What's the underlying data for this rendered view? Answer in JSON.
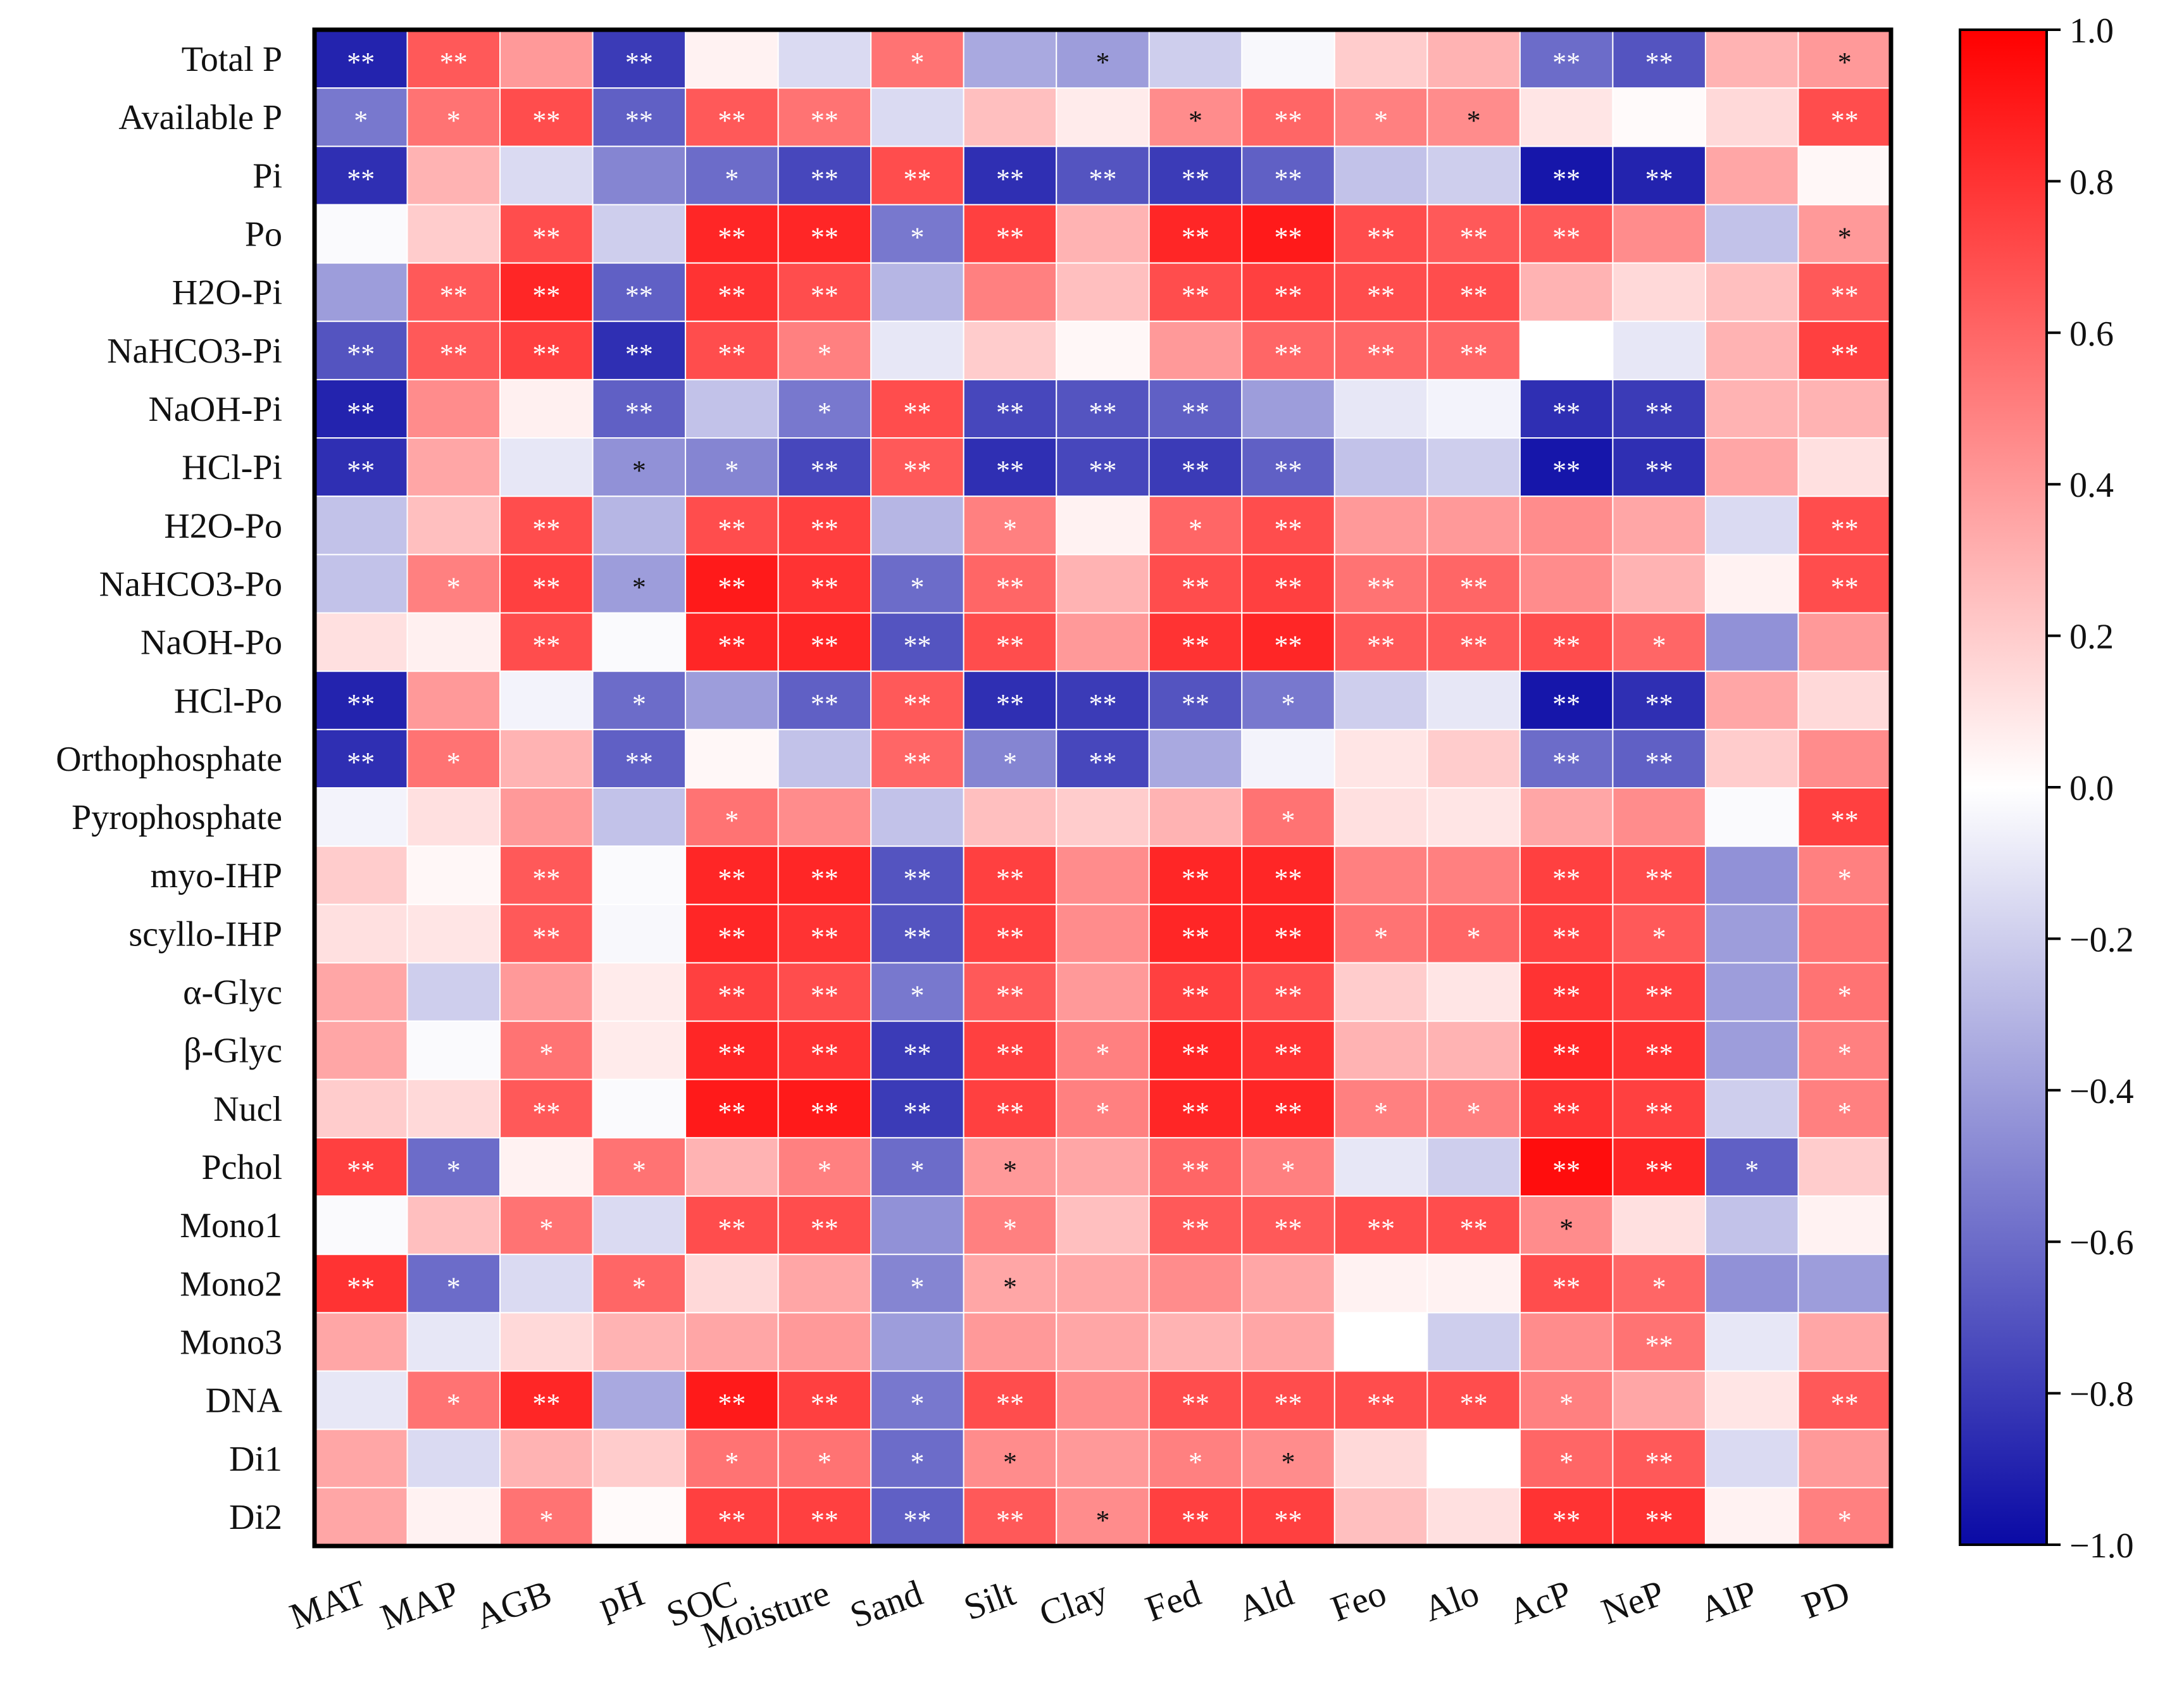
{
  "chart_data": {
    "type": "heatmap",
    "title": "",
    "xlabel": "",
    "ylabel": "",
    "rows": [
      "Total P",
      "Available P",
      "Pi",
      "Po",
      "H2O-Pi",
      "NaHCO3-Pi",
      "NaOH-Pi",
      "HCl-Pi",
      "H2O-Po",
      "NaHCO3-Po",
      "NaOH-Po",
      "HCl-Po",
      "Orthophosphate",
      "Pyrophosphate",
      "myo-IHP",
      "scyllo-IHP",
      "α-Glyc",
      "β-Glyc",
      "Nucl",
      "Pchol",
      "Mono1",
      "Mono2",
      "Mono3",
      "DNA",
      "Di1",
      "Di2"
    ],
    "columns": [
      "MAT",
      "MAP",
      "AGB",
      "pH",
      "SOC",
      "Moisture",
      "Sand",
      "Silt",
      "Clay",
      "Fed",
      "Ald",
      "Feo",
      "Alo",
      "AcP",
      "NeP",
      "AlP",
      "PD"
    ],
    "values": [
      [
        -0.9,
        0.65,
        0.4,
        -0.8,
        0.05,
        -0.15,
        0.55,
        -0.35,
        -0.4,
        -0.2,
        -0.03,
        0.2,
        0.3,
        -0.6,
        -0.7,
        0.3,
        0.4
      ],
      [
        -0.55,
        0.55,
        0.7,
        -0.65,
        0.65,
        0.55,
        -0.15,
        0.25,
        0.08,
        0.45,
        0.6,
        0.5,
        0.45,
        0.1,
        0.02,
        0.15,
        0.7
      ],
      [
        -0.85,
        0.3,
        -0.15,
        -0.5,
        -0.6,
        -0.75,
        0.7,
        -0.85,
        -0.7,
        -0.8,
        -0.65,
        -0.25,
        -0.2,
        -0.95,
        -0.9,
        0.35,
        0.03
      ],
      [
        -0.02,
        0.2,
        0.7,
        -0.2,
        0.85,
        0.85,
        -0.55,
        0.75,
        0.3,
        0.85,
        0.9,
        0.7,
        0.65,
        0.65,
        0.45,
        -0.25,
        0.4
      ],
      [
        -0.4,
        0.65,
        0.85,
        -0.65,
        0.8,
        0.7,
        -0.3,
        0.5,
        0.25,
        0.7,
        0.75,
        0.7,
        0.7,
        0.3,
        0.15,
        0.25,
        0.65
      ],
      [
        -0.7,
        0.65,
        0.75,
        -0.85,
        0.7,
        0.5,
        -0.1,
        0.2,
        0.03,
        0.4,
        0.6,
        0.6,
        0.6,
        0.0,
        -0.1,
        0.3,
        0.75
      ],
      [
        -0.9,
        0.45,
        0.06,
        -0.65,
        -0.25,
        -0.55,
        0.7,
        -0.75,
        -0.7,
        -0.65,
        -0.4,
        -0.1,
        -0.05,
        -0.85,
        -0.8,
        0.3,
        0.3
      ],
      [
        -0.85,
        0.35,
        -0.1,
        -0.45,
        -0.5,
        -0.75,
        0.65,
        -0.85,
        -0.75,
        -0.8,
        -0.65,
        -0.25,
        -0.2,
        -0.95,
        -0.85,
        0.35,
        0.12
      ],
      [
        -0.25,
        0.25,
        0.7,
        -0.3,
        0.7,
        0.75,
        -0.3,
        0.5,
        0.05,
        0.6,
        0.7,
        0.4,
        0.4,
        0.45,
        0.35,
        -0.15,
        0.7
      ],
      [
        -0.25,
        0.5,
        0.75,
        -0.4,
        0.9,
        0.8,
        -0.6,
        0.6,
        0.3,
        0.7,
        0.75,
        0.55,
        0.6,
        0.45,
        0.3,
        0.05,
        0.7
      ],
      [
        0.12,
        0.06,
        0.7,
        -0.02,
        0.85,
        0.85,
        -0.7,
        0.7,
        0.4,
        0.8,
        0.85,
        0.65,
        0.65,
        0.7,
        0.6,
        -0.45,
        0.4
      ],
      [
        -0.9,
        0.4,
        -0.05,
        -0.6,
        -0.4,
        -0.65,
        0.65,
        -0.85,
        -0.8,
        -0.7,
        -0.55,
        -0.2,
        -0.1,
        -0.95,
        -0.85,
        0.35,
        0.15
      ],
      [
        -0.85,
        0.55,
        0.3,
        -0.65,
        0.03,
        -0.25,
        0.6,
        -0.5,
        -0.75,
        -0.35,
        -0.05,
        0.1,
        0.2,
        -0.6,
        -0.65,
        0.2,
        0.45
      ],
      [
        -0.05,
        0.12,
        0.4,
        -0.25,
        0.55,
        0.45,
        -0.25,
        0.25,
        0.2,
        0.3,
        0.55,
        0.12,
        0.1,
        0.35,
        0.45,
        -0.02,
        0.75
      ],
      [
        0.2,
        0.03,
        0.65,
        -0.02,
        0.85,
        0.85,
        -0.7,
        0.75,
        0.45,
        0.85,
        0.85,
        0.5,
        0.5,
        0.75,
        0.7,
        -0.45,
        0.5
      ],
      [
        0.12,
        0.1,
        0.65,
        -0.03,
        0.85,
        0.8,
        -0.7,
        0.75,
        0.45,
        0.85,
        0.85,
        0.55,
        0.6,
        0.75,
        0.65,
        -0.4,
        0.55
      ],
      [
        0.35,
        -0.2,
        0.4,
        0.08,
        0.75,
        0.7,
        -0.55,
        0.65,
        0.4,
        0.75,
        0.7,
        0.2,
        0.1,
        0.8,
        0.75,
        -0.4,
        0.55
      ],
      [
        0.35,
        -0.02,
        0.55,
        0.08,
        0.85,
        0.8,
        -0.8,
        0.75,
        0.5,
        0.85,
        0.8,
        0.3,
        0.3,
        0.85,
        0.8,
        -0.4,
        0.5
      ],
      [
        0.2,
        0.15,
        0.65,
        -0.02,
        0.9,
        0.9,
        -0.8,
        0.75,
        0.5,
        0.85,
        0.85,
        0.5,
        0.5,
        0.8,
        0.75,
        -0.2,
        0.5
      ],
      [
        0.75,
        -0.6,
        0.05,
        0.55,
        0.3,
        0.5,
        -0.6,
        0.4,
        0.35,
        0.6,
        0.5,
        -0.1,
        -0.2,
        0.95,
        0.85,
        -0.65,
        0.2
      ],
      [
        -0.02,
        0.25,
        0.55,
        -0.15,
        0.7,
        0.7,
        -0.45,
        0.5,
        0.25,
        0.65,
        0.65,
        0.7,
        0.7,
        0.45,
        0.12,
        -0.25,
        0.05
      ],
      [
        0.8,
        -0.6,
        -0.15,
        0.6,
        0.15,
        0.35,
        -0.5,
        0.35,
        0.35,
        0.45,
        0.35,
        0.05,
        0.05,
        0.7,
        0.6,
        -0.45,
        -0.4
      ],
      [
        0.35,
        -0.1,
        0.15,
        0.3,
        0.35,
        0.4,
        -0.4,
        0.4,
        0.35,
        0.3,
        0.35,
        0.0,
        -0.2,
        0.45,
        0.55,
        -0.1,
        0.35
      ],
      [
        -0.1,
        0.55,
        0.85,
        -0.35,
        0.9,
        0.75,
        -0.55,
        0.7,
        0.45,
        0.7,
        0.7,
        0.7,
        0.7,
        0.5,
        0.35,
        0.1,
        0.65
      ],
      [
        0.35,
        -0.15,
        0.3,
        0.2,
        0.55,
        0.55,
        -0.6,
        0.45,
        0.4,
        0.5,
        0.45,
        0.15,
        0.0,
        0.6,
        0.65,
        -0.15,
        0.4
      ],
      [
        0.35,
        0.05,
        0.55,
        0.02,
        0.75,
        0.75,
        -0.65,
        0.65,
        0.45,
        0.75,
        0.75,
        0.25,
        0.12,
        0.8,
        0.8,
        0.05,
        0.5
      ]
    ],
    "significance": [
      [
        "**",
        "**",
        "",
        "**",
        "",
        "",
        "*",
        "",
        "*",
        "",
        "",
        "",
        "",
        "**",
        "**",
        "",
        "*"
      ],
      [
        "*",
        "*",
        "**",
        "**",
        "**",
        "**",
        "",
        "",
        "",
        "*",
        "**",
        "*",
        "*",
        "",
        "",
        "",
        "**"
      ],
      [
        "**",
        "",
        "",
        "",
        "*",
        "**",
        "**",
        "**",
        "**",
        "**",
        "**",
        "",
        "",
        "**",
        "**",
        "",
        ""
      ],
      [
        "",
        "",
        "**",
        "",
        "**",
        "**",
        "*",
        "**",
        "",
        "**",
        "**",
        "**",
        "**",
        "**",
        "",
        "",
        "*"
      ],
      [
        "",
        "**",
        "**",
        "**",
        "**",
        "**",
        "",
        "",
        "",
        "**",
        "**",
        "**",
        "**",
        "",
        "",
        "",
        "**"
      ],
      [
        "**",
        "**",
        "**",
        "**",
        "**",
        "*",
        "",
        "",
        "",
        "",
        "**",
        "**",
        "**",
        "",
        "",
        "",
        "**"
      ],
      [
        "**",
        "",
        "",
        "**",
        "",
        "*",
        "**",
        "**",
        "**",
        "**",
        "",
        "",
        "",
        "**",
        "**",
        "",
        ""
      ],
      [
        "**",
        "",
        "",
        "*",
        "*",
        "**",
        "**",
        "**",
        "**",
        "**",
        "**",
        "",
        "",
        "**",
        "**",
        "",
        ""
      ],
      [
        "",
        "",
        "**",
        "",
        "**",
        "**",
        "",
        "*",
        "",
        "*",
        "**",
        "",
        "",
        "",
        "",
        "",
        "**"
      ],
      [
        "",
        "*",
        "**",
        "*",
        "**",
        "**",
        "*",
        "**",
        "",
        "**",
        "**",
        "**",
        "**",
        "",
        "",
        "",
        "**"
      ],
      [
        "",
        "",
        "**",
        "",
        "**",
        "**",
        "**",
        "**",
        "",
        "**",
        "**",
        "**",
        "**",
        "**",
        "*",
        "",
        ""
      ],
      [
        "**",
        "",
        "",
        "*",
        "",
        "**",
        "**",
        "**",
        "**",
        "**",
        "*",
        "",
        "",
        "**",
        "**",
        "",
        ""
      ],
      [
        "**",
        "*",
        "",
        "**",
        "",
        "",
        "**",
        "*",
        "**",
        "",
        "",
        "",
        "",
        "**",
        "**",
        "",
        ""
      ],
      [
        "",
        "",
        "",
        "",
        "*",
        "",
        "",
        "",
        "",
        "",
        "*",
        "",
        "",
        "",
        "",
        "",
        "**"
      ],
      [
        "",
        "",
        "**",
        "",
        "**",
        "**",
        "**",
        "**",
        "",
        "**",
        "**",
        "",
        "",
        "**",
        "**",
        "",
        "*"
      ],
      [
        "",
        "",
        "**",
        "",
        "**",
        "**",
        "**",
        "**",
        "",
        "**",
        "**",
        "*",
        "*",
        "**",
        "*",
        "",
        ""
      ],
      [
        "",
        "",
        "",
        "",
        "**",
        "**",
        "*",
        "**",
        "",
        "**",
        "**",
        "",
        "",
        "**",
        "**",
        "",
        "*"
      ],
      [
        "",
        "",
        "*",
        "",
        "**",
        "**",
        "**",
        "**",
        "*",
        "**",
        "**",
        "",
        "",
        "**",
        "**",
        "",
        "*"
      ],
      [
        "",
        "",
        "**",
        "",
        "**",
        "**",
        "**",
        "**",
        "*",
        "**",
        "**",
        "*",
        "*",
        "**",
        "**",
        "",
        "*"
      ],
      [
        "**",
        "*",
        "",
        "*",
        "",
        "*",
        "*",
        "*",
        "",
        "**",
        "*",
        "",
        "",
        "**",
        "**",
        "*",
        ""
      ],
      [
        "",
        "",
        "*",
        "",
        "**",
        "**",
        "",
        "*",
        "",
        "**",
        "**",
        "**",
        "**",
        "*",
        "",
        "",
        ""
      ],
      [
        "**",
        "*",
        "",
        "*",
        "",
        "",
        "*",
        "*",
        "",
        "",
        "",
        "",
        "",
        "**",
        "*",
        "",
        ""
      ],
      [
        "",
        "",
        "",
        "",
        "",
        "",
        "",
        "",
        "",
        "",
        "",
        "",
        "",
        "",
        "**",
        "",
        ""
      ],
      [
        "",
        "*",
        "**",
        "",
        "**",
        "**",
        "*",
        "**",
        "",
        "**",
        "**",
        "**",
        "**",
        "*",
        "",
        "",
        "**"
      ],
      [
        "",
        "",
        "",
        "",
        "*",
        "*",
        "*",
        "*",
        "",
        "*",
        "*",
        "",
        "",
        "*",
        "**",
        "",
        ""
      ],
      [
        "",
        "",
        "*",
        "",
        "**",
        "**",
        "**",
        "**",
        "*",
        "**",
        "**",
        "",
        "",
        "**",
        "**",
        "",
        "*"
      ]
    ],
    "colorbar": {
      "range": [
        -1.0,
        1.0
      ],
      "tick_labels": [
        "1.0",
        "0.8",
        "0.6",
        "0.4",
        "0.2",
        "0.0",
        "−0.2",
        "−0.4",
        "−0.6",
        "−0.8",
        "−1.0"
      ],
      "tick_values": [
        1.0,
        0.8,
        0.6,
        0.4,
        0.2,
        0.0,
        -0.2,
        -0.4,
        -0.6,
        -0.8,
        -1.0
      ],
      "low_color": "#0a0aa5",
      "mid_color": "#ffffff",
      "high_color": "#ff0000"
    }
  }
}
